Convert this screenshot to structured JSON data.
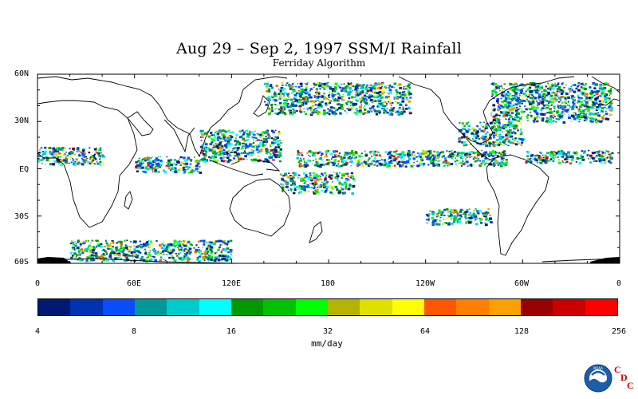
{
  "title": "Aug 29 – Sep 2, 1997 SSM/I Rainfall",
  "subtitle": "Ferriday Algorithm",
  "lat_labels": [
    "60N",
    "30N",
    "EQ",
    "30S",
    "60S"
  ],
  "lon_labels": [
    "0",
    "60E",
    "120E",
    "180",
    "120W",
    "60W",
    "0"
  ],
  "colorbar": {
    "colors": [
      "#001a73",
      "#0033b3",
      "#0a4cff",
      "#00999a",
      "#00cccc",
      "#00ffff",
      "#009900",
      "#00c200",
      "#00ff00",
      "#b3b300",
      "#e0e000",
      "#ffff00",
      "#ff5500",
      "#ff7f00",
      "#ffa000",
      "#990000",
      "#cc0000",
      "#ff0000"
    ],
    "tick_labels": [
      "4",
      "8",
      "16",
      "32",
      "64",
      "128",
      "256"
    ],
    "units": "mm/day"
  },
  "logo": {
    "name": "NOAA",
    "org_letters": [
      "C",
      "D",
      "C"
    ]
  },
  "map": {
    "lat_range": [
      -60,
      60
    ],
    "lon_range": [
      0,
      360
    ],
    "rain_bands": [
      {
        "name": "ITCZ Pacific",
        "lon": [
          160,
          290
        ],
        "lat": [
          2,
          12
        ],
        "intensity": 3
      },
      {
        "name": "ITCZ Atlantic",
        "lon": [
          300,
          355
        ],
        "lat": [
          4,
          12
        ],
        "intensity": 3
      },
      {
        "name": "Africa",
        "lon": [
          0,
          40
        ],
        "lat": [
          3,
          14
        ],
        "intensity": 2
      },
      {
        "name": "Indian Ocean",
        "lon": [
          60,
          100
        ],
        "lat": [
          -2,
          8
        ],
        "intensity": 3
      },
      {
        "name": "Western Pacific",
        "lon": [
          100,
          150
        ],
        "lat": [
          5,
          25
        ],
        "intensity": 4
      },
      {
        "name": "SPCZ",
        "lon": [
          150,
          195
        ],
        "lat": [
          -15,
          -2
        ],
        "intensity": 2
      },
      {
        "name": "Southern Ocean Pacific",
        "lon": [
          240,
          280
        ],
        "lat": [
          -35,
          -25
        ],
        "intensity": 2
      },
      {
        "name": "Southern Ocean",
        "lon": [
          20,
          120
        ],
        "lat": [
          -58,
          -45
        ],
        "intensity": 1
      },
      {
        "name": "North Pacific",
        "lon": [
          140,
          230
        ],
        "lat": [
          35,
          55
        ],
        "intensity": 2
      },
      {
        "name": "North Atlantic",
        "lon": [
          280,
          355
        ],
        "lat": [
          30,
          55
        ],
        "intensity": 2
      },
      {
        "name": "Gulf",
        "lon": [
          260,
          300
        ],
        "lat": [
          15,
          30
        ],
        "intensity": 3
      }
    ]
  }
}
